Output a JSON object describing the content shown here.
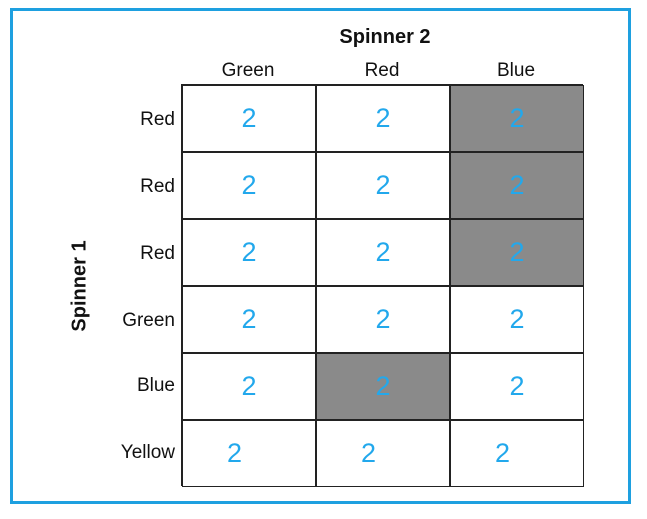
{
  "table": {
    "spinner2_title": "Spinner 2",
    "spinner1_title": "Spinner 1",
    "columns": [
      "Green",
      "Red",
      "Blue"
    ],
    "rows": [
      "Red",
      "Red",
      "Red",
      "Green",
      "Blue",
      "Yellow"
    ],
    "cells": [
      [
        "2",
        "2",
        "2"
      ],
      [
        "2",
        "2",
        "2"
      ],
      [
        "2",
        "2",
        "2"
      ],
      [
        "2",
        "2",
        "2"
      ],
      [
        "2",
        "2",
        "2"
      ],
      [
        "2",
        "2",
        "2"
      ]
    ],
    "shaded": [
      [
        0,
        2
      ],
      [
        1,
        2
      ],
      [
        2,
        2
      ],
      [
        4,
        1
      ]
    ],
    "colors": {
      "border": "#1ea0e0",
      "value": "#22a8ec",
      "shade": "#8a8a8a"
    }
  }
}
